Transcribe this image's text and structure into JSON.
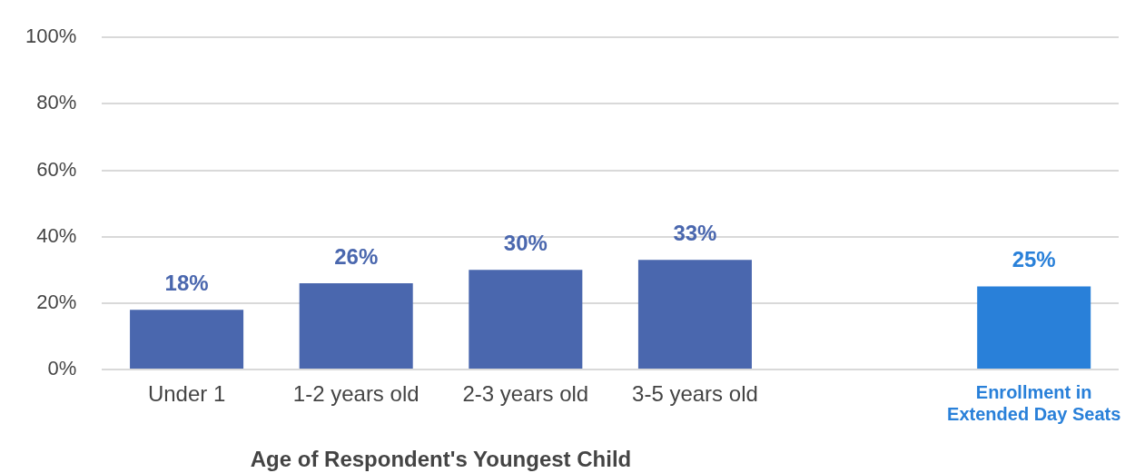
{
  "chart_data": {
    "type": "bar",
    "xlabel": "Age of Respondent's Youngest Child",
    "categories": [
      "Under 1",
      "1-2 years old",
      "2-3 years old",
      "3-5 years old",
      null,
      "Enrollment in Extended Day Seats"
    ],
    "values": [
      18,
      26,
      30,
      33,
      null,
      25
    ],
    "colors": [
      "#4a67ae",
      "#4a67ae",
      "#4a67ae",
      "#4a67ae",
      "#4a67ae",
      "#2980d9"
    ],
    "value_labels": [
      "18%",
      "26%",
      "30%",
      "33%",
      null,
      "25%"
    ],
    "ylim": [
      0,
      100
    ],
    "yticks": [
      {
        "value": 0,
        "label": "0%"
      },
      {
        "value": 20,
        "label": "20%"
      },
      {
        "value": 40,
        "label": "40%"
      },
      {
        "value": 60,
        "label": "60%"
      },
      {
        "value": 80,
        "label": "80%"
      },
      {
        "value": 100,
        "label": "100%"
      }
    ],
    "grid": "y",
    "legend": false
  }
}
